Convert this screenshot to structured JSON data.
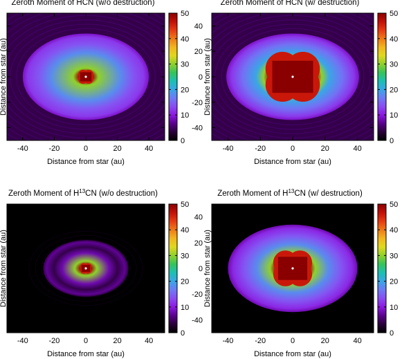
{
  "colors": {
    "colormap": [
      "#000000",
      "#2a003a",
      "#5a008c",
      "#8c19e0",
      "#8a4cf2",
      "#6d7af4",
      "#3aa6e6",
      "#1cbfb2",
      "#35c45a",
      "#8fd12c",
      "#e0d81e",
      "#f2b51d",
      "#ee7a18",
      "#e63a12",
      "#c21008",
      "#8a0000"
    ]
  },
  "chart_data": [
    {
      "type": "heatmap",
      "title_parts": [
        "Zeroth Moment of HCN (w/o destruction)"
      ],
      "xlabel": "Distance from star (au)",
      "ylabel": "Distance from star (au)",
      "xlim": [
        -50,
        50
      ],
      "ylim": [
        -50,
        50
      ],
      "xticks": [
        -40,
        -20,
        0,
        20,
        40
      ],
      "yticks": [
        -40,
        -20,
        0,
        20,
        40
      ],
      "colorbar": {
        "min": 0,
        "max": 50,
        "ticks": [
          0,
          10,
          20,
          30,
          40,
          50
        ]
      },
      "model": {
        "bg": 4,
        "rx": 40,
        "ry": 34,
        "edge": 9,
        "inner": 14,
        "peak_r": 4
      }
    },
    {
      "type": "heatmap",
      "title_parts": [
        "Zeroth Moment of HCN (w/ destruction)"
      ],
      "xlabel": "Distance from star (au)",
      "ylabel": "Distance from star (au)",
      "xlim": [
        -50,
        50
      ],
      "ylim": [
        -50,
        50
      ],
      "xticks": [
        -40,
        -20,
        0,
        20,
        40
      ],
      "yticks": [
        -40,
        -20,
        0,
        20,
        40
      ],
      "colorbar": {
        "min": 0,
        "max": 50,
        "ticks": [
          0,
          10,
          20,
          30,
          40,
          50
        ]
      },
      "model": {
        "bg": 4,
        "rx": 41,
        "ry": 34,
        "edge": 9,
        "inner": 16,
        "peak_r": 14
      }
    },
    {
      "type": "heatmap",
      "title_parts": [
        "Zeroth Moment of H",
        "13",
        "CN (w/o destruction)"
      ],
      "xlabel": "Distance from star (au)",
      "ylabel": "Distance from star (au)",
      "xlim": [
        -50,
        50
      ],
      "ylim": [
        -50,
        50
      ],
      "xticks": [
        -40,
        -20,
        0,
        20,
        40
      ],
      "yticks": [
        -40,
        -20,
        0,
        20,
        40
      ],
      "colorbar": {
        "min": 0,
        "max": 50,
        "ticks": [
          0,
          10,
          20,
          30,
          40,
          50
        ]
      },
      "model": {
        "bg": 0,
        "rx": 27,
        "ry": 22,
        "edge": 4,
        "inner": 4,
        "peak_r": 3
      }
    },
    {
      "type": "heatmap",
      "title_parts": [
        "Zeroth Moment of H",
        "13",
        "CN (w/ destruction)"
      ],
      "xlabel": "Distance from star (au)",
      "ylabel": "Distance from star (au)",
      "xlim": [
        -50,
        50
      ],
      "ylim": [
        -50,
        50
      ],
      "xticks": [
        -40,
        -20,
        0,
        20,
        40
      ],
      "yticks": [
        -40,
        -20,
        0,
        20,
        40
      ],
      "colorbar": {
        "min": 0,
        "max": 50,
        "ticks": [
          0,
          10,
          20,
          30,
          40,
          50
        ]
      },
      "model": {
        "bg": 0,
        "rx": 40,
        "ry": 34,
        "edge": 8,
        "inner": 14,
        "peak_r": 10
      }
    }
  ]
}
